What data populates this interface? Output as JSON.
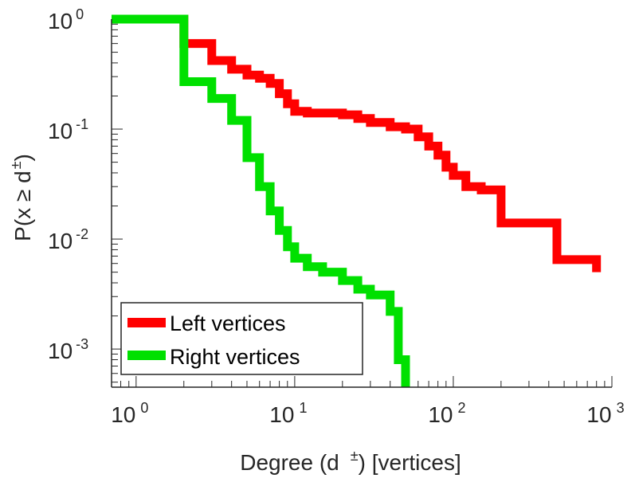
{
  "chart_data": {
    "type": "line",
    "xscale": "log",
    "yscale": "log",
    "xlim": [
      0.7,
      1000
    ],
    "ylim": [
      0.00045,
      1.0
    ],
    "xlabel": {
      "prefix": "Degree (d",
      "sup": "±",
      "suffix": ") [vertices]"
    },
    "ylabel": {
      "prefix": "P(x ≥ d",
      "sup": "±",
      "suffix": ")"
    },
    "x_ticks": [
      {
        "value": 1,
        "base": "10",
        "exp": "0"
      },
      {
        "value": 10,
        "base": "10",
        "exp": "1"
      },
      {
        "value": 100,
        "base": "10",
        "exp": "2"
      },
      {
        "value": 1000,
        "base": "10",
        "exp": "3"
      }
    ],
    "y_ticks": [
      {
        "value": 1,
        "base": "10",
        "exp": "0"
      },
      {
        "value": 0.1,
        "base": "10",
        "exp": "-1"
      },
      {
        "value": 0.01,
        "base": "10",
        "exp": "-2"
      },
      {
        "value": 0.001,
        "base": "10",
        "exp": "-3"
      }
    ],
    "legend_position": "bottom-left",
    "series": [
      {
        "name": "Left vertices",
        "color": "#ff0000",
        "x": [
          1,
          2,
          3,
          4,
          5,
          6,
          7,
          8,
          9,
          10,
          12,
          15,
          20,
          25,
          30,
          40,
          50,
          60,
          70,
          80,
          90,
          100,
          120,
          150,
          200,
          450,
          800
        ],
        "y": [
          1.0,
          0.6,
          0.42,
          0.35,
          0.31,
          0.29,
          0.26,
          0.21,
          0.17,
          0.145,
          0.14,
          0.14,
          0.135,
          0.125,
          0.115,
          0.105,
          0.1,
          0.085,
          0.07,
          0.058,
          0.045,
          0.038,
          0.03,
          0.028,
          0.014,
          0.0065,
          0.005
        ]
      },
      {
        "name": "Right vertices",
        "color": "#00e000",
        "x": [
          1,
          2,
          3,
          4,
          5,
          6,
          7,
          8,
          9,
          10,
          12,
          15,
          20,
          25,
          30,
          40,
          45,
          50
        ],
        "y": [
          1.0,
          0.27,
          0.19,
          0.12,
          0.055,
          0.03,
          0.018,
          0.012,
          0.0085,
          0.0067,
          0.0056,
          0.005,
          0.0042,
          0.0035,
          0.0031,
          0.0022,
          0.0008,
          0.0004
        ]
      }
    ]
  }
}
